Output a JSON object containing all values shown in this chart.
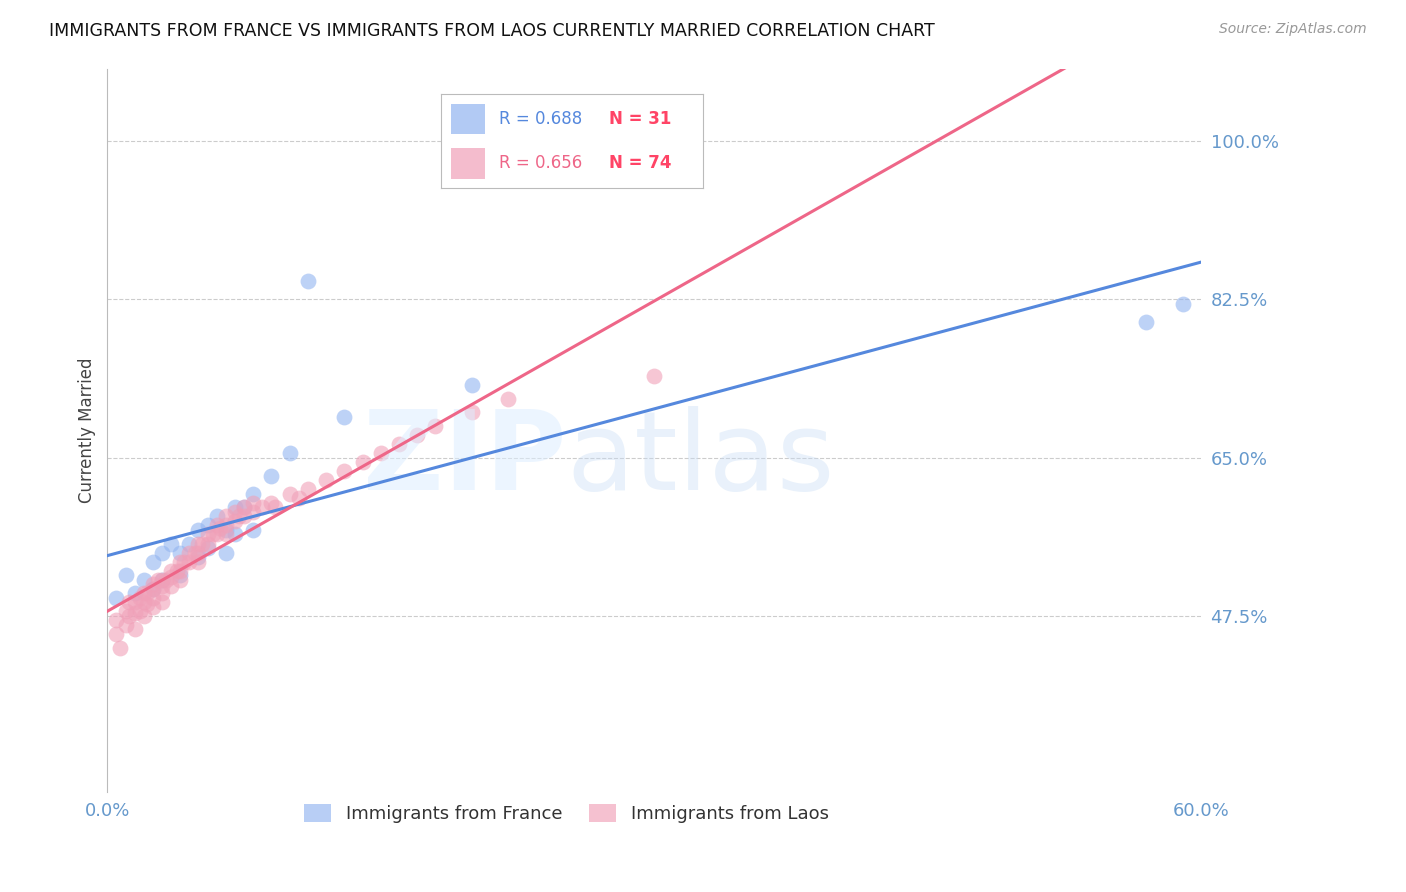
{
  "title": "IMMIGRANTS FROM FRANCE VS IMMIGRANTS FROM LAOS CURRENTLY MARRIED CORRELATION CHART",
  "source": "Source: ZipAtlas.com",
  "ylabel": "Currently Married",
  "yticks": [
    47.5,
    65.0,
    82.5,
    100.0
  ],
  "xlim": [
    0.0,
    0.6
  ],
  "ylim": [
    0.28,
    1.08
  ],
  "france_R": 0.688,
  "france_N": 31,
  "laos_R": 0.656,
  "laos_N": 74,
  "france_color": "#92b4f0",
  "laos_color": "#f0a0b8",
  "france_line_color": "#5588dd",
  "laos_line_color": "#ee6688",
  "france_x": [
    0.005,
    0.01,
    0.015,
    0.02,
    0.025,
    0.025,
    0.03,
    0.03,
    0.035,
    0.04,
    0.04,
    0.045,
    0.05,
    0.05,
    0.055,
    0.055,
    0.06,
    0.065,
    0.065,
    0.07,
    0.07,
    0.075,
    0.08,
    0.08,
    0.09,
    0.1,
    0.11,
    0.13,
    0.2,
    0.57,
    0.59
  ],
  "france_y": [
    0.495,
    0.52,
    0.5,
    0.515,
    0.535,
    0.505,
    0.545,
    0.515,
    0.555,
    0.545,
    0.52,
    0.555,
    0.57,
    0.54,
    0.575,
    0.55,
    0.585,
    0.57,
    0.545,
    0.595,
    0.565,
    0.595,
    0.61,
    0.57,
    0.63,
    0.655,
    0.845,
    0.695,
    0.73,
    0.8,
    0.82
  ],
  "laos_x": [
    0.005,
    0.005,
    0.007,
    0.01,
    0.01,
    0.012,
    0.012,
    0.015,
    0.015,
    0.015,
    0.018,
    0.018,
    0.02,
    0.02,
    0.02,
    0.022,
    0.022,
    0.025,
    0.025,
    0.025,
    0.025,
    0.028,
    0.03,
    0.03,
    0.03,
    0.03,
    0.032,
    0.035,
    0.035,
    0.035,
    0.038,
    0.04,
    0.04,
    0.04,
    0.042,
    0.045,
    0.045,
    0.048,
    0.05,
    0.05,
    0.05,
    0.052,
    0.055,
    0.055,
    0.058,
    0.06,
    0.06,
    0.062,
    0.065,
    0.065,
    0.065,
    0.07,
    0.07,
    0.072,
    0.075,
    0.075,
    0.08,
    0.08,
    0.085,
    0.09,
    0.092,
    0.1,
    0.105,
    0.11,
    0.12,
    0.13,
    0.14,
    0.15,
    0.16,
    0.17,
    0.18,
    0.2,
    0.22,
    0.3
  ],
  "laos_y": [
    0.47,
    0.455,
    0.44,
    0.48,
    0.465,
    0.49,
    0.475,
    0.49,
    0.478,
    0.46,
    0.495,
    0.48,
    0.5,
    0.49,
    0.475,
    0.5,
    0.488,
    0.51,
    0.505,
    0.495,
    0.485,
    0.515,
    0.515,
    0.508,
    0.5,
    0.49,
    0.515,
    0.525,
    0.518,
    0.508,
    0.525,
    0.535,
    0.525,
    0.515,
    0.535,
    0.545,
    0.535,
    0.545,
    0.555,
    0.545,
    0.535,
    0.555,
    0.565,
    0.555,
    0.565,
    0.575,
    0.565,
    0.572,
    0.585,
    0.575,
    0.565,
    0.59,
    0.58,
    0.585,
    0.595,
    0.585,
    0.6,
    0.59,
    0.595,
    0.6,
    0.595,
    0.61,
    0.605,
    0.615,
    0.625,
    0.635,
    0.645,
    0.655,
    0.665,
    0.675,
    0.685,
    0.7,
    0.715,
    0.74
  ]
}
